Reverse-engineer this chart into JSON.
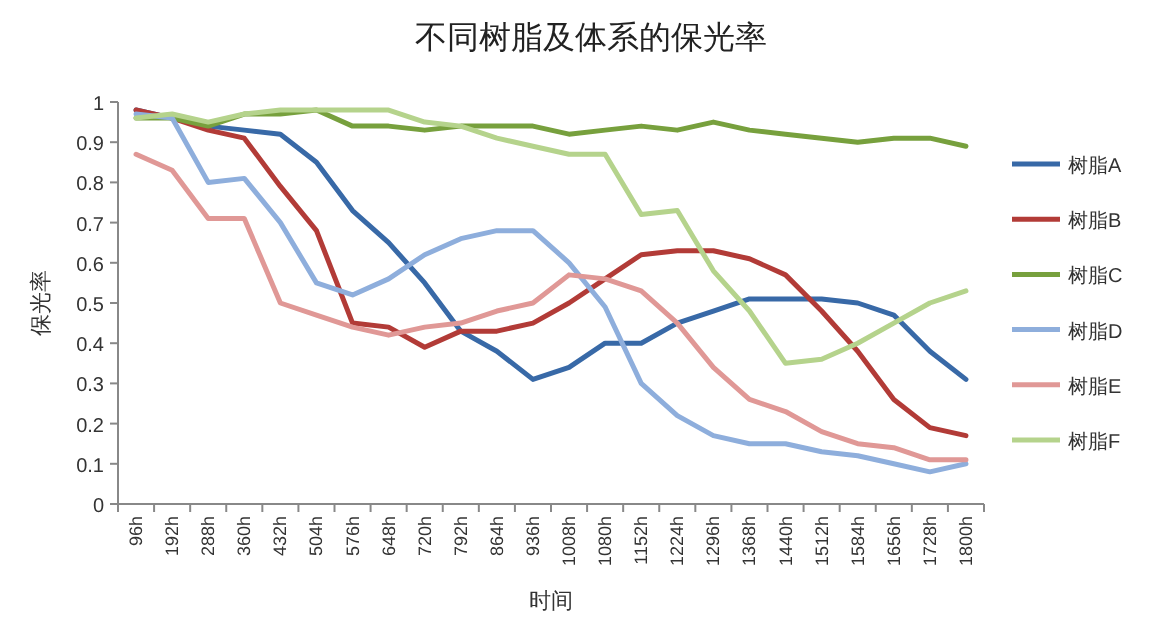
{
  "chart_data": {
    "type": "line",
    "title": "不同树脂及体系的保光率",
    "xlabel": "时间",
    "ylabel": "保光率",
    "categories": [
      "96h",
      "192h",
      "288h",
      "360h",
      "432h",
      "504h",
      "576h",
      "648h",
      "720h",
      "792h",
      "864h",
      "936h",
      "1008h",
      "1080h",
      "1152h",
      "1224h",
      "1296h",
      "1368h",
      "1440h",
      "1512h",
      "1584h",
      "1656h",
      "1728h",
      "1800h"
    ],
    "ylim": [
      0,
      1
    ],
    "yticks": [
      0,
      {
        "value": 0.1,
        "label": "0.1"
      },
      {
        "value": 0.2,
        "label": "0.2"
      },
      {
        "value": 0.3,
        "label": "0.3"
      },
      {
        "value": 0.4,
        "label": "0.4"
      },
      {
        "value": 0.5,
        "label": "0.5"
      },
      {
        "value": 0.6,
        "label": "0.6"
      },
      {
        "value": 0.7,
        "label": "0.7"
      },
      {
        "value": 0.8,
        "label": "0.8"
      },
      {
        "value": 0.9,
        "label": "0.9"
      },
      1
    ],
    "grid": false,
    "legend": "right",
    "marker": "none",
    "line_style": "solid",
    "series": [
      {
        "name": "树脂A",
        "color": "#3869a7",
        "values": [
          0.98,
          0.96,
          0.94,
          0.93,
          0.92,
          0.85,
          0.73,
          0.65,
          0.55,
          0.43,
          0.38,
          0.31,
          0.34,
          0.4,
          0.4,
          0.45,
          0.48,
          0.51,
          0.51,
          0.51,
          0.5,
          0.47,
          0.38,
          0.31
        ]
      },
      {
        "name": "树脂B",
        "color": "#b23b37",
        "values": [
          0.98,
          0.96,
          0.93,
          0.91,
          0.79,
          0.68,
          0.45,
          0.44,
          0.39,
          0.43,
          0.43,
          0.45,
          0.5,
          0.56,
          0.62,
          0.63,
          0.63,
          0.61,
          0.57,
          0.48,
          0.38,
          0.26,
          0.19,
          0.17
        ]
      },
      {
        "name": "树脂C",
        "color": "#77a03d",
        "values": [
          0.96,
          0.96,
          0.94,
          0.97,
          0.97,
          0.98,
          0.94,
          0.94,
          0.93,
          0.94,
          0.94,
          0.94,
          0.92,
          0.93,
          0.94,
          0.93,
          0.95,
          0.93,
          0.92,
          0.91,
          0.9,
          0.91,
          0.91,
          0.89
        ]
      },
      {
        "name": "树脂D",
        "color": "#8eaedc",
        "values": [
          0.97,
          0.96,
          0.8,
          0.81,
          0.7,
          0.55,
          0.52,
          0.56,
          0.62,
          0.66,
          0.68,
          0.68,
          0.6,
          0.49,
          0.3,
          0.22,
          0.17,
          0.15,
          0.15,
          0.13,
          0.12,
          0.1,
          0.08,
          0.1
        ]
      },
      {
        "name": "树脂E",
        "color": "#e09896",
        "values": [
          0.87,
          0.83,
          0.71,
          0.71,
          0.5,
          0.47,
          0.44,
          0.42,
          0.44,
          0.45,
          0.48,
          0.5,
          0.57,
          0.56,
          0.53,
          0.45,
          0.34,
          0.26,
          0.23,
          0.18,
          0.15,
          0.14,
          0.11,
          0.11
        ]
      },
      {
        "name": "树脂F",
        "color": "#b5d38c",
        "values": [
          0.96,
          0.97,
          0.95,
          0.97,
          0.98,
          0.98,
          0.98,
          0.98,
          0.95,
          0.94,
          0.91,
          0.89,
          0.87,
          0.87,
          0.72,
          0.73,
          0.58,
          0.48,
          0.35,
          0.36,
          0.4,
          0.45,
          0.5,
          0.53
        ]
      }
    ]
  }
}
